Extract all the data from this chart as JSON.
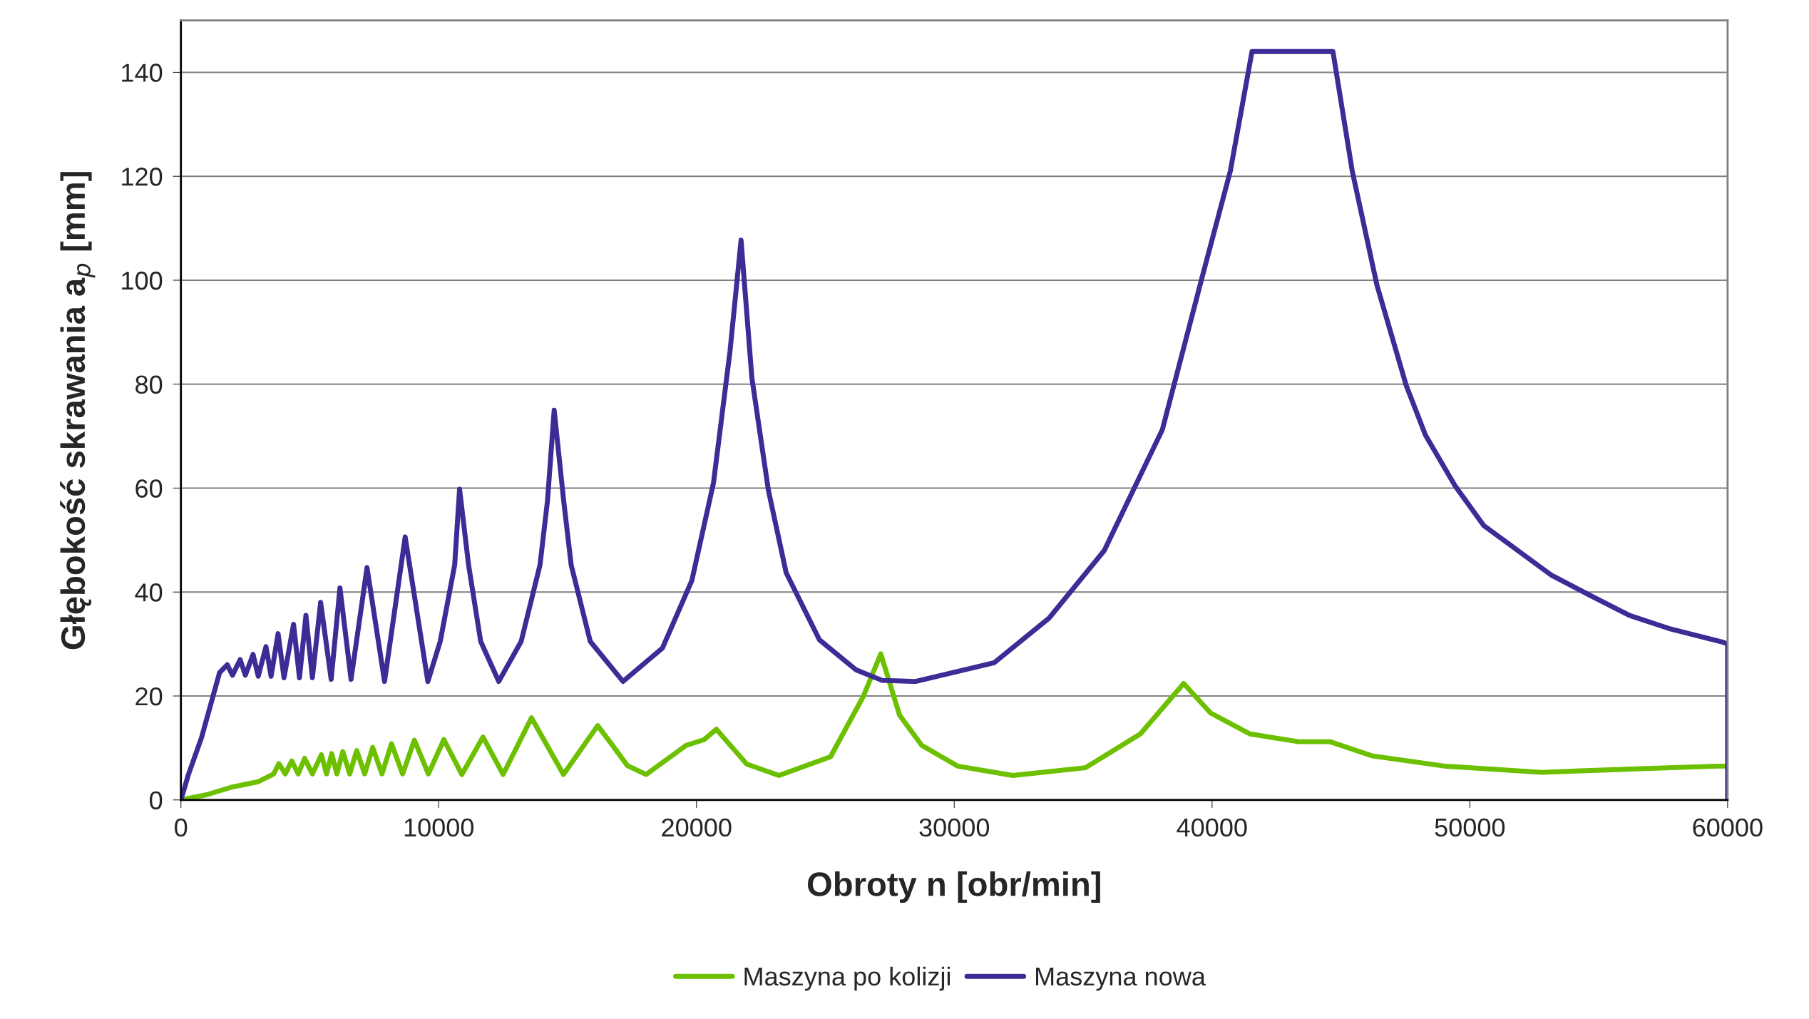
{
  "chart_data": {
    "type": "line",
    "xlabel": "Obroty n [obr/min]",
    "ylabel": "Głębokość skrawania a$_{p}$ [mm]",
    "xlim": [
      0,
      60000
    ],
    "xticks": [
      0,
      10000,
      20000,
      30000,
      40000,
      50000,
      60000
    ],
    "ylim": [
      0,
      150
    ],
    "yticks": [
      0,
      20,
      40,
      60,
      80,
      100,
      120,
      140
    ],
    "grid": "y",
    "legend": "bottom",
    "marker": "none",
    "line_style": "solid",
    "series": [
      {
        "name": "Maszyna po kolizji",
        "color": "#6cc000",
        "x": [
          0,
          1000,
          2000,
          3000,
          3600,
          3800,
          4050,
          4300,
          4550,
          4800,
          5100,
          5450,
          5650,
          5850,
          6050,
          6280,
          6550,
          6820,
          7130,
          7440,
          7800,
          8170,
          8600,
          9060,
          9600,
          10200,
          10900,
          11720,
          12500,
          13600,
          14840,
          16170,
          16700,
          17320,
          18050,
          19600,
          20300,
          20770,
          21950,
          23200,
          25200,
          26470,
          27150,
          27880,
          28740,
          30140,
          32270,
          35090,
          37220,
          38900,
          39950,
          41470,
          43360,
          44580,
          46190,
          49020,
          52800,
          54300,
          59600,
          60000
        ],
        "values": [
          0,
          1,
          2.5,
          3.5,
          5,
          7,
          5,
          7.5,
          5,
          8,
          5,
          8.7,
          5,
          8.9,
          5,
          9.3,
          5,
          9.5,
          5,
          10.1,
          5,
          10.8,
          5,
          11.5,
          5,
          11.6,
          4.9,
          12.1,
          4.9,
          15.8,
          4.9,
          14.3,
          10.8,
          6.6,
          4.9,
          10.5,
          11.6,
          13.6,
          6.9,
          4.7,
          8.3,
          19.9,
          28.1,
          16.3,
          10.5,
          6.5,
          4.7,
          6.2,
          12.7,
          22.4,
          16.7,
          12.7,
          11.2,
          11.2,
          8.5,
          6.5,
          5.3,
          5.6,
          6.5,
          6.5
        ]
      },
      {
        "name": "Maszyna nowa",
        "color": "#3d2b96",
        "x": [
          0,
          300,
          800,
          1500,
          1800,
          2000,
          2300,
          2500,
          2800,
          3000,
          3300,
          3500,
          3770,
          4000,
          4370,
          4600,
          4850,
          5100,
          5420,
          5830,
          6170,
          6600,
          7220,
          7900,
          8700,
          9580,
          10060,
          10620,
          10810,
          11160,
          11630,
          12330,
          13200,
          13930,
          14220,
          14480,
          14850,
          15140,
          15880,
          17150,
          18680,
          19820,
          20660,
          21300,
          21730,
          22150,
          22790,
          23480,
          24770,
          26200,
          27200,
          28500,
          31550,
          33680,
          35820,
          38070,
          39580,
          40710,
          41550,
          44690,
          45440,
          46400,
          47530,
          48280,
          49420,
          50540,
          51860,
          53180,
          54690,
          56200,
          57720,
          59850,
          60000,
          60000
        ],
        "values": [
          0,
          5,
          12,
          24.5,
          26,
          24,
          27,
          24,
          28,
          23.8,
          29.5,
          23.8,
          32,
          23.5,
          33.8,
          23.5,
          35.5,
          23.5,
          38,
          23.2,
          40.8,
          23.2,
          44.7,
          22.8,
          50.6,
          22.8,
          30.5,
          45.2,
          59.8,
          45.2,
          30.5,
          22.8,
          30.5,
          45.2,
          57.5,
          75,
          57.5,
          45.2,
          30.5,
          22.8,
          29.2,
          42.2,
          61,
          86.3,
          107.7,
          81.2,
          59.6,
          43.7,
          30.8,
          25,
          23,
          22.8,
          26.4,
          35,
          48,
          71.2,
          99.9,
          121,
          144,
          144,
          121,
          99,
          79.8,
          70.2,
          60.5,
          52.8,
          48,
          43.2,
          39.3,
          35.5,
          33,
          30.3,
          30,
          0
        ]
      }
    ]
  }
}
